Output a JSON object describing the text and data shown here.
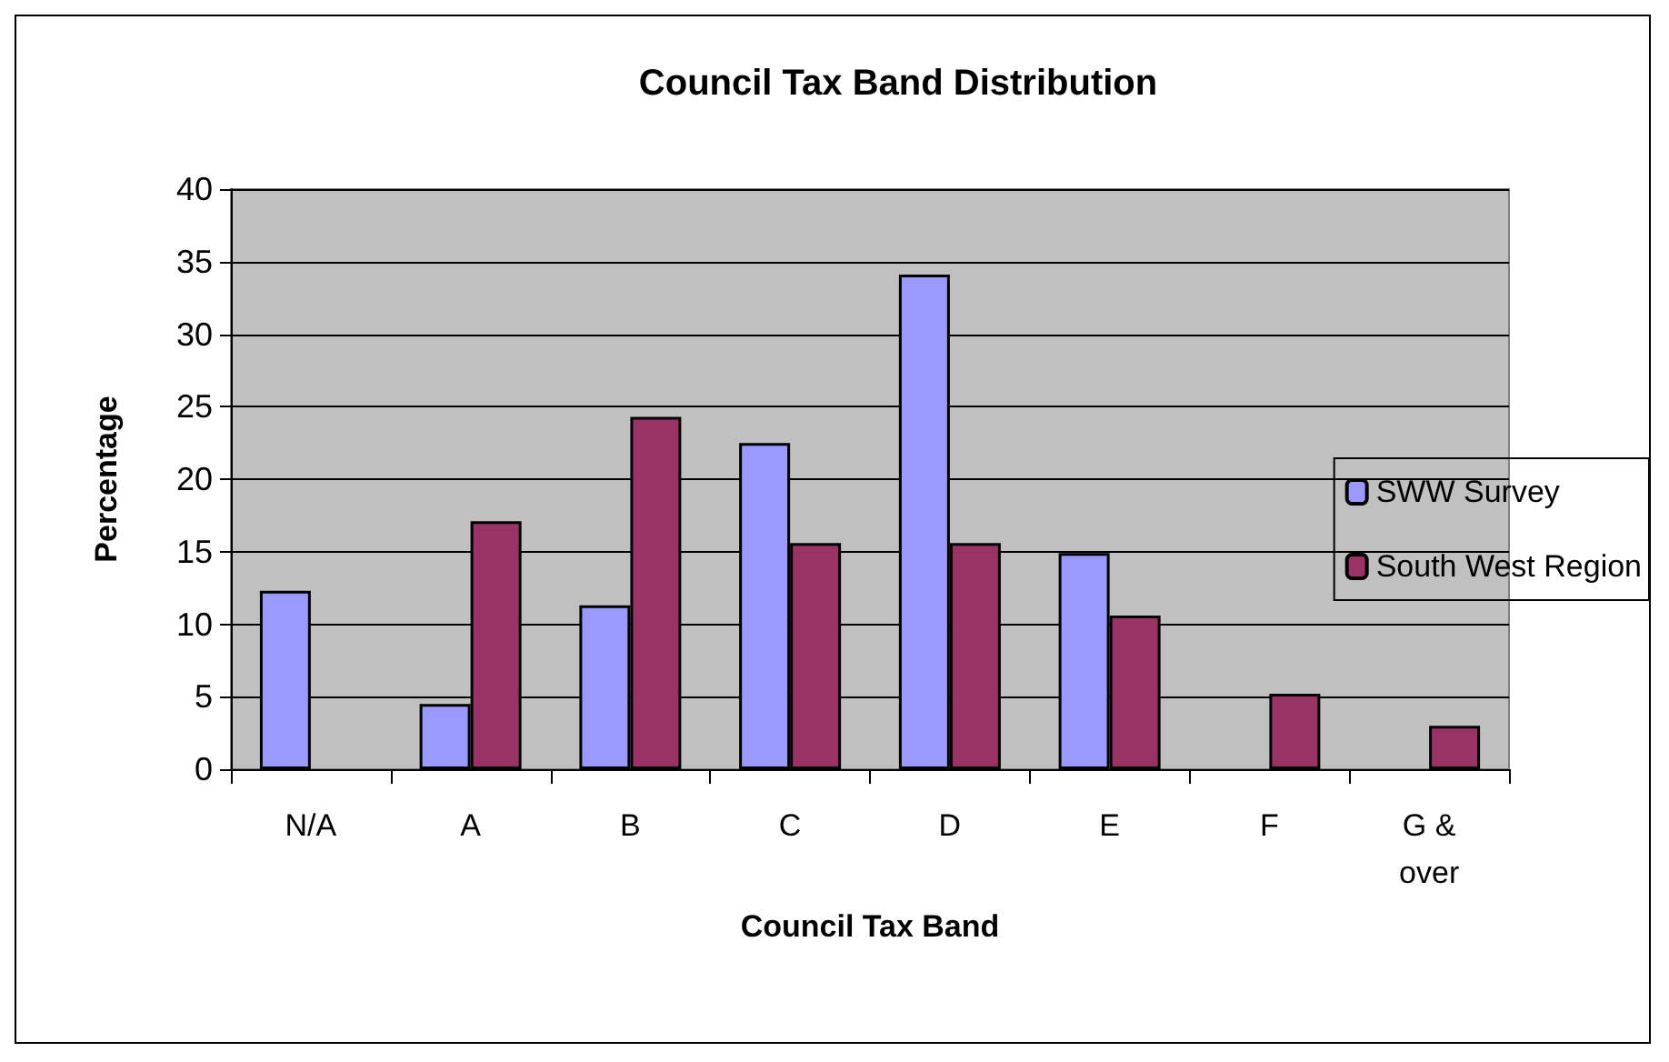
{
  "chart_data": {
    "type": "bar",
    "title": "Council Tax Band Distribution",
    "xlabel": "Council Tax Band",
    "ylabel": "Percentage",
    "categories": [
      "N/A",
      "A",
      "B",
      "C",
      "D",
      "E",
      "F",
      "G & over"
    ],
    "series": [
      {
        "name": "SWW Survey",
        "color": "#9999ff",
        "values": [
          12.3,
          4.5,
          11.3,
          22.5,
          34.1,
          14.9,
          null,
          null
        ]
      },
      {
        "name": "South West Region",
        "color": "#993366",
        "values": [
          null,
          17.1,
          24.3,
          15.6,
          15.6,
          10.6,
          5.2,
          3.0
        ]
      }
    ],
    "ylim": [
      0,
      40
    ],
    "yticks": [
      0,
      5,
      10,
      15,
      20,
      25,
      30,
      35,
      40
    ],
    "grid": "y",
    "legend": "right"
  }
}
